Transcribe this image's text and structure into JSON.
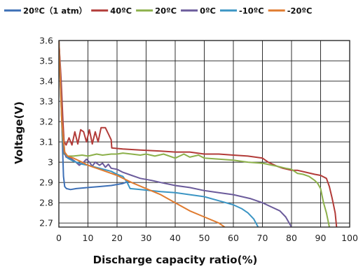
{
  "chart_data": {
    "type": "line",
    "title": "",
    "xlabel": "Discharge capacity ratio(%)",
    "ylabel": "Voltage(V)",
    "xlim": [
      0,
      100
    ],
    "ylim": [
      2.68,
      3.6
    ],
    "xticks": [
      0,
      10,
      20,
      30,
      40,
      50,
      60,
      70,
      80,
      90,
      100
    ],
    "yticks": [
      2.7,
      2.8,
      2.9,
      3.0,
      3.1,
      3.2,
      3.3,
      3.4,
      3.5,
      3.6
    ],
    "ytick_labels": [
      "2.7",
      "2.8",
      "2.9",
      "3",
      "3.1",
      "3.2",
      "3.3",
      "3.4",
      "3.5",
      "3.6"
    ],
    "grid": true,
    "legend_position": "top",
    "series": [
      {
        "name": "20ºC（1 atm）",
        "color": "#3c6fb6",
        "points": [
          [
            0,
            3.6
          ],
          [
            0.6,
            3.42
          ],
          [
            1.2,
            3.1
          ],
          [
            1.6,
            2.93
          ],
          [
            2,
            2.88
          ],
          [
            2.6,
            2.87
          ],
          [
            4,
            2.865
          ],
          [
            6,
            2.87
          ],
          [
            10,
            2.875
          ],
          [
            14,
            2.88
          ],
          [
            18,
            2.885
          ],
          [
            22,
            2.895
          ],
          [
            24,
            2.905
          ]
        ]
      },
      {
        "name": "40ºC",
        "color": "#b23b38",
        "points": [
          [
            0,
            3.6
          ],
          [
            0.8,
            3.4
          ],
          [
            1.4,
            3.2
          ],
          [
            1.8,
            3.1
          ],
          [
            2.5,
            3.085
          ],
          [
            3.5,
            3.12
          ],
          [
            4.5,
            3.085
          ],
          [
            5.5,
            3.15
          ],
          [
            6.5,
            3.09
          ],
          [
            7.5,
            3.16
          ],
          [
            8.5,
            3.15
          ],
          [
            9.5,
            3.1
          ],
          [
            10.5,
            3.16
          ],
          [
            11.5,
            3.09
          ],
          [
            12.5,
            3.15
          ],
          [
            13.5,
            3.1
          ],
          [
            14.5,
            3.17
          ],
          [
            16,
            3.17
          ],
          [
            17,
            3.14
          ],
          [
            18,
            3.11
          ],
          [
            18.2,
            3.07
          ],
          [
            22,
            3.065
          ],
          [
            28,
            3.06
          ],
          [
            35,
            3.055
          ],
          [
            40,
            3.05
          ],
          [
            45,
            3.05
          ],
          [
            50,
            3.04
          ],
          [
            55,
            3.04
          ],
          [
            60,
            3.035
          ],
          [
            65,
            3.03
          ],
          [
            70,
            3.02
          ],
          [
            72,
            3.0
          ],
          [
            75,
            2.98
          ],
          [
            77,
            2.97
          ],
          [
            80,
            2.96
          ],
          [
            82,
            2.96
          ],
          [
            85,
            2.95
          ],
          [
            88,
            2.94
          ],
          [
            90,
            2.935
          ],
          [
            92,
            2.92
          ],
          [
            93,
            2.88
          ],
          [
            94,
            2.82
          ],
          [
            95,
            2.75
          ],
          [
            95.5,
            2.68
          ]
        ]
      },
      {
        "name": "20ºC",
        "color": "#8cb04a",
        "points": [
          [
            0,
            3.6
          ],
          [
            0.6,
            3.35
          ],
          [
            1.2,
            3.12
          ],
          [
            1.8,
            3.04
          ],
          [
            3,
            3.03
          ],
          [
            5,
            3.03
          ],
          [
            8,
            3.035
          ],
          [
            10,
            3.03
          ],
          [
            13,
            3.04
          ],
          [
            15,
            3.035
          ],
          [
            18,
            3.04
          ],
          [
            20,
            3.04
          ],
          [
            22,
            3.045
          ],
          [
            25,
            3.04
          ],
          [
            28,
            3.035
          ],
          [
            30,
            3.04
          ],
          [
            33,
            3.03
          ],
          [
            36,
            3.04
          ],
          [
            40,
            3.02
          ],
          [
            43,
            3.04
          ],
          [
            45,
            3.025
          ],
          [
            48,
            3.035
          ],
          [
            50,
            3.02
          ],
          [
            55,
            3.015
          ],
          [
            60,
            3.01
          ],
          [
            65,
            3.0
          ],
          [
            70,
            2.995
          ],
          [
            75,
            2.98
          ],
          [
            78,
            2.97
          ],
          [
            80,
            2.965
          ],
          [
            82,
            2.945
          ],
          [
            84,
            2.94
          ],
          [
            86,
            2.93
          ],
          [
            88,
            2.91
          ],
          [
            89,
            2.895
          ],
          [
            90,
            2.87
          ],
          [
            91,
            2.8
          ],
          [
            92,
            2.75
          ],
          [
            93,
            2.68
          ]
        ]
      },
      {
        "name": "0ºC",
        "color": "#6b5b9b",
        "points": [
          [
            0,
            3.6
          ],
          [
            0.6,
            3.4
          ],
          [
            1.2,
            3.15
          ],
          [
            1.8,
            3.05
          ],
          [
            2.5,
            3.025
          ],
          [
            4,
            3.02
          ],
          [
            5.5,
            3.005
          ],
          [
            7,
            2.985
          ],
          [
            8.5,
            3.0
          ],
          [
            9.5,
            3.015
          ],
          [
            10.5,
            3.0
          ],
          [
            11.5,
            2.98
          ],
          [
            12.5,
            3.0
          ],
          [
            14,
            2.985
          ],
          [
            15,
            2.995
          ],
          [
            16,
            2.975
          ],
          [
            17,
            2.99
          ],
          [
            18,
            2.97
          ],
          [
            20,
            2.965
          ],
          [
            22,
            2.95
          ],
          [
            25,
            2.935
          ],
          [
            28,
            2.92
          ],
          [
            32,
            2.91
          ],
          [
            35,
            2.9
          ],
          [
            40,
            2.885
          ],
          [
            45,
            2.875
          ],
          [
            50,
            2.86
          ],
          [
            55,
            2.85
          ],
          [
            60,
            2.84
          ],
          [
            63,
            2.83
          ],
          [
            66,
            2.82
          ],
          [
            70,
            2.8
          ],
          [
            73,
            2.78
          ],
          [
            76,
            2.76
          ],
          [
            78,
            2.73
          ],
          [
            80,
            2.68
          ]
        ]
      },
      {
        "name": "-10ºC",
        "color": "#3b95c4",
        "points": [
          [
            0,
            3.6
          ],
          [
            1,
            3.2
          ],
          [
            2,
            3.05
          ],
          [
            3,
            3.02
          ],
          [
            5,
            3.005
          ],
          [
            8,
            2.99
          ],
          [
            10,
            2.985
          ],
          [
            14,
            2.97
          ],
          [
            18,
            2.955
          ],
          [
            20,
            2.94
          ],
          [
            22,
            2.93
          ],
          [
            23.5,
            2.9
          ],
          [
            24.5,
            2.87
          ],
          [
            28,
            2.865
          ],
          [
            35,
            2.855
          ],
          [
            40,
            2.85
          ],
          [
            45,
            2.84
          ],
          [
            50,
            2.83
          ],
          [
            55,
            2.81
          ],
          [
            60,
            2.79
          ],
          [
            63,
            2.77
          ],
          [
            65,
            2.75
          ],
          [
            67,
            2.72
          ],
          [
            68.5,
            2.68
          ]
        ]
      },
      {
        "name": "-20ºC",
        "color": "#e07b2f",
        "points": [
          [
            0,
            3.6
          ],
          [
            1,
            3.2
          ],
          [
            2,
            3.05
          ],
          [
            3,
            3.03
          ],
          [
            5,
            3.02
          ],
          [
            8,
            3.0
          ],
          [
            10,
            2.985
          ],
          [
            13,
            2.97
          ],
          [
            16,
            2.955
          ],
          [
            20,
            2.935
          ],
          [
            25,
            2.9
          ],
          [
            30,
            2.87
          ],
          [
            35,
            2.84
          ],
          [
            40,
            2.8
          ],
          [
            45,
            2.76
          ],
          [
            50,
            2.73
          ],
          [
            55,
            2.7
          ],
          [
            57,
            2.68
          ]
        ]
      }
    ]
  }
}
